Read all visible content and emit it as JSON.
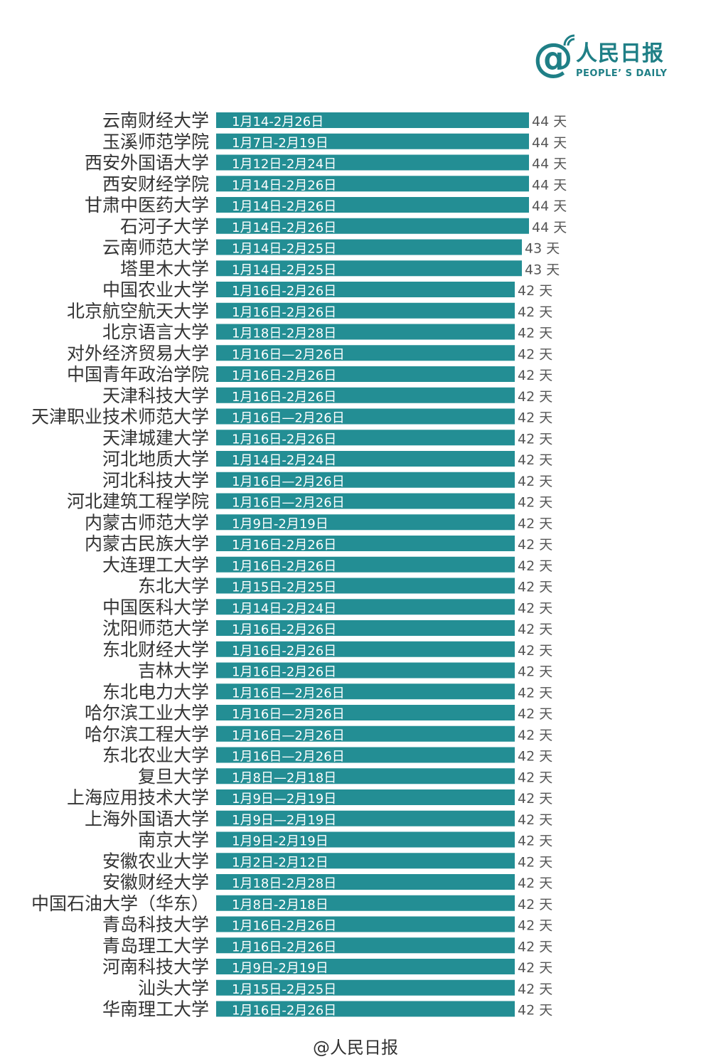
{
  "logo": {
    "at": "@",
    "name_cn": "人民日报",
    "name_en": "PEOPLE’ S DAILY"
  },
  "footer": "@人民日报",
  "colors": {
    "bar": "#238e94",
    "text": "#333333",
    "value": "#555555"
  },
  "chart_data": {
    "type": "bar",
    "orientation": "horizontal",
    "title": "",
    "xlabel": "",
    "ylabel": "",
    "value_suffix": "天",
    "xlim": [
      0,
      44
    ],
    "grid": false,
    "legend": "none",
    "categories": [
      "云南财经大学",
      "玉溪师范学院",
      "西安外国语大学",
      "西安财经学院",
      "甘肃中医药大学",
      "石河子大学",
      "云南师范大学",
      "塔里木大学",
      "中国农业大学",
      "北京航空航天大学",
      "北京语言大学",
      "对外经济贸易大学",
      "中国青年政治学院",
      "天津科技大学",
      "天津职业技术师范大学",
      "天津城建大学",
      "河北地质大学",
      "河北科技大学",
      "河北建筑工程学院",
      "内蒙古师范大学",
      "内蒙古民族大学",
      "大连理工大学",
      "东北大学",
      "中国医科大学",
      "沈阳师范大学",
      "东北财经大学",
      "吉林大学",
      "东北电力大学",
      "哈尔滨工业大学",
      "哈尔滨工程大学",
      "东北农业大学",
      "复旦大学",
      "上海应用技术大学",
      "上海外国语大学",
      "南京大学",
      "安徽农业大学",
      "安徽财经大学",
      "中国石油大学（华东）",
      "青岛科技大学",
      "青岛理工大学",
      "河南科技大学",
      "汕头大学",
      "华南理工大学"
    ],
    "values": [
      44,
      44,
      44,
      44,
      44,
      44,
      43,
      43,
      42,
      42,
      42,
      42,
      42,
      42,
      42,
      42,
      42,
      42,
      42,
      42,
      42,
      42,
      42,
      42,
      42,
      42,
      42,
      42,
      42,
      42,
      42,
      42,
      42,
      42,
      42,
      42,
      42,
      42,
      42,
      42,
      42,
      42,
      42
    ],
    "date_ranges": [
      "1月14-2月26日",
      "1月7日-2月19日",
      "1月12日-2月24日",
      "1月14日-2月26日",
      "1月14日-2月26日",
      "1月14日-2月26日",
      "1月14日-2月25日",
      "1月14日-2月25日",
      "1月16日-2月26日",
      "1月16日-2月26日",
      "1月18日-2月28日",
      "1月16日—2月26日",
      "1月16日-2月26日",
      "1月16日-2月26日",
      "1月16日—2月26日",
      "1月16日-2月26日",
      "1月14日-2月24日",
      "1月16日—2月26日",
      "1月16日—2月26日",
      "1月9日-2月19日",
      "1月16日-2月26日",
      "1月16日-2月26日",
      "1月15日-2月25日",
      "1月14日-2月24日",
      "1月16日-2月26日",
      "1月16日-2月26日",
      "1月16日-2月26日",
      "1月16日—2月26日",
      "1月16日—2月26日",
      "1月16日—2月26日",
      "1月16日—2月26日",
      "1月8日—2月18日",
      "1月9日—2月19日",
      "1月9日—2月19日",
      "1月9日-2月19日",
      "1月2日-2月12日",
      "1月18日-2月28日",
      "1月8日-2月18日",
      "1月16日-2月26日",
      "1月16日-2月26日",
      "1月9日-2月19日",
      "1月15日-2月25日",
      "1月16日-2月26日"
    ]
  }
}
